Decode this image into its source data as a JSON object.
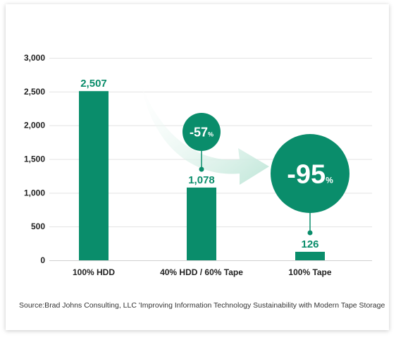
{
  "chart_data": {
    "type": "bar",
    "categories": [
      "100% HDD",
      "40% HDD / 60% Tape",
      "100% Tape"
    ],
    "values": [
      2507,
      1078,
      126
    ],
    "data_labels": [
      "2,507",
      "1,078",
      "126"
    ],
    "yticks": [
      "0",
      "500",
      "1,000",
      "1,500",
      "2,000",
      "2,500",
      "3,000"
    ],
    "ylim": [
      0,
      3000
    ],
    "grid": true,
    "colors": {
      "bar": "#0a8d6b",
      "grid": "#e3e3e3",
      "arrow": "#cdece2"
    },
    "annotations": [
      {
        "value": "-57",
        "unit": "%",
        "category": "40% HDD / 60% Tape"
      },
      {
        "value": "-95",
        "unit": "%",
        "category": "100% Tape"
      }
    ]
  },
  "source": "Source:Brad Johns Consulting, LLC 'Improving Information Technology Sustainability with Modern Tape Storage"
}
